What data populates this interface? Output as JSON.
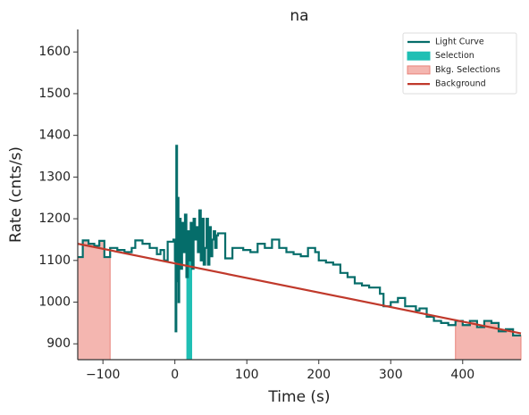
{
  "chart_data": {
    "type": "step",
    "title": "na",
    "xlabel": "Time (s)",
    "ylabel": "Rate (cnts/s)",
    "xlim": [
      -135,
      481
    ],
    "ylim": [
      862,
      1654
    ],
    "xticks": [
      {
        "value": -100,
        "label": "−100"
      },
      0,
      100,
      200,
      300,
      400
    ],
    "yticks": [
      900,
      1000,
      1100,
      1200,
      1300,
      1400,
      1500,
      1600
    ],
    "legend": "upper right",
    "series": [
      {
        "name": "Light Curve",
        "color": "#056d6a",
        "x": [
          -135,
          -128,
          -120,
          -112,
          -105,
          -98,
          -90,
          -80,
          -70,
          -60,
          -55,
          -45,
          -35,
          -25,
          -20,
          -15,
          -10,
          -2,
          0,
          1,
          2,
          3,
          4,
          5,
          6,
          8,
          10,
          12,
          14,
          16,
          18,
          20,
          22,
          24,
          26,
          28,
          30,
          32,
          34,
          36,
          38,
          40,
          42,
          44,
          46,
          48,
          50,
          52,
          54,
          56,
          58,
          60,
          70,
          80,
          95,
          105,
          115,
          125,
          135,
          145,
          155,
          165,
          175,
          185,
          195,
          200,
          210,
          220,
          230,
          240,
          250,
          260,
          270,
          285,
          290,
          300,
          310,
          320,
          335,
          340,
          350,
          360,
          370,
          380,
          390,
          400,
          410,
          420,
          430,
          440,
          450,
          460,
          470
        ],
        "values": [
          1108,
          1148,
          1140,
          1135,
          1147,
          1108,
          1130,
          1125,
          1120,
          1130,
          1148,
          1140,
          1130,
          1115,
          1125,
          1100,
          1145,
          1150,
          1100,
          930,
          1375,
          1050,
          1250,
          1000,
          1200,
          1080,
          1190,
          1120,
          1210,
          1060,
          1170,
          1100,
          1190,
          1080,
          1200,
          1150,
          1180,
          1120,
          1220,
          1100,
          1200,
          1090,
          1130,
          1200,
          1090,
          1180,
          1110,
          1150,
          1170,
          1130,
          1160,
          1165,
          1105,
          1130,
          1125,
          1120,
          1140,
          1130,
          1150,
          1130,
          1120,
          1115,
          1110,
          1130,
          1120,
          1100,
          1095,
          1090,
          1070,
          1060,
          1045,
          1040,
          1035,
          1020,
          990,
          1000,
          1010,
          990,
          980,
          985,
          965,
          955,
          950,
          945,
          955,
          945,
          955,
          940,
          955,
          950,
          930,
          935,
          920
        ]
      },
      {
        "name": "Background",
        "color": "#c0392b",
        "x": [
          -135,
          481
        ],
        "values": [
          1140,
          925
        ]
      }
    ],
    "selection": {
      "name": "Selection",
      "color": "#1fbfb4",
      "span": [
        16,
        24
      ]
    },
    "bkg_selections": {
      "name": "Bkg. Selections",
      "color": "#f4b6b0",
      "edge": "#e8837a",
      "spans": [
        [
          -135,
          -90
        ],
        [
          390,
          481
        ]
      ]
    }
  }
}
